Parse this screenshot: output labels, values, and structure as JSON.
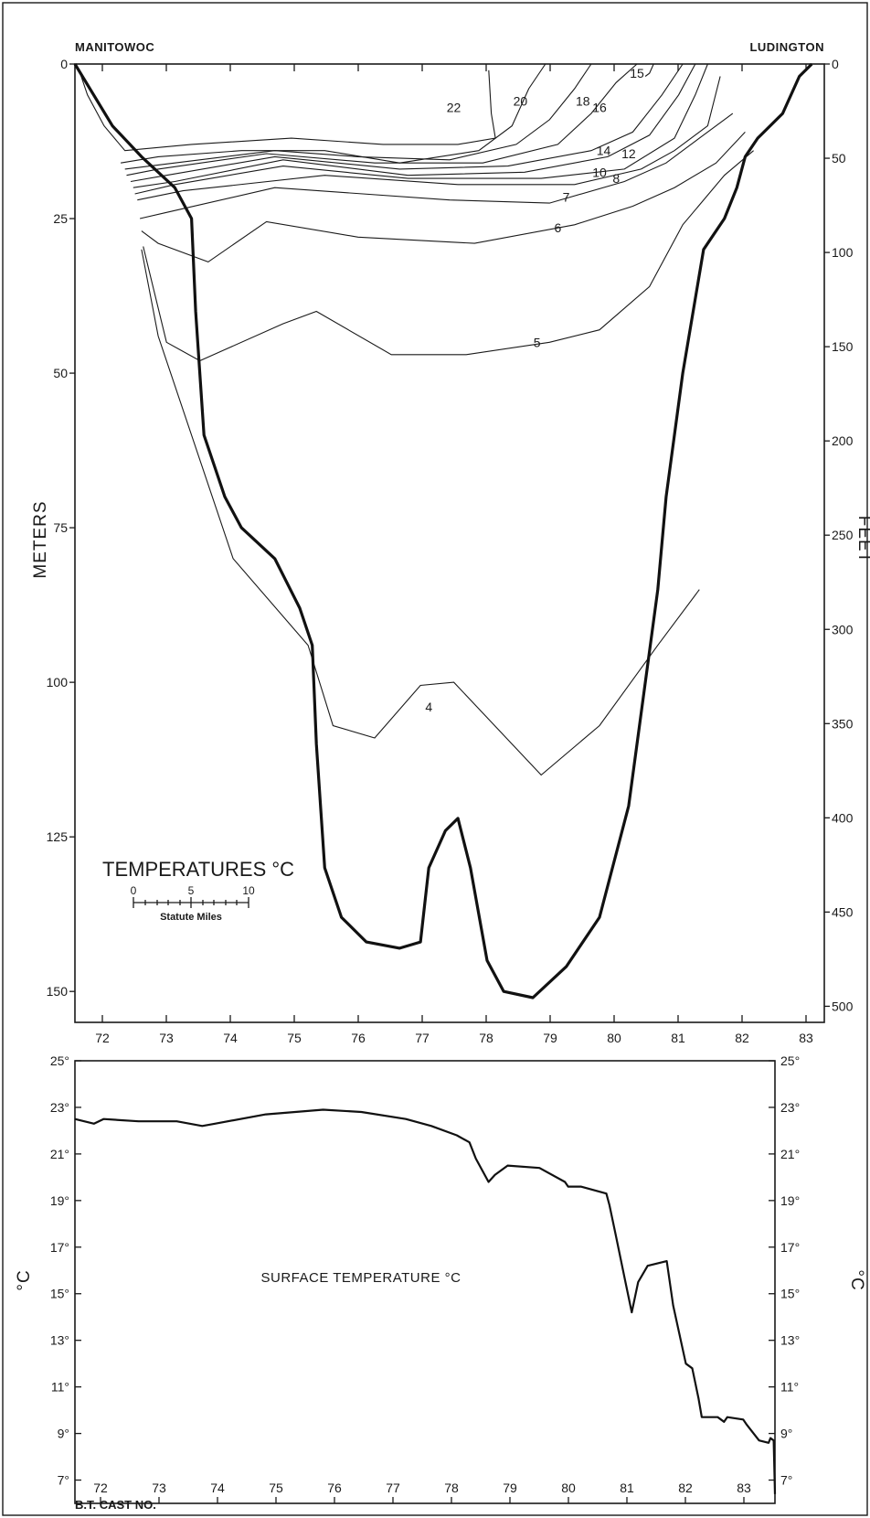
{
  "colors": {
    "ink": "#1a1a1a",
    "paper": "#ffffff"
  },
  "chart_data": [
    {
      "type": "line",
      "subtype": "cross-section isotherms",
      "title": "TEMPERATURES °C",
      "left_station": "MANITOWOC",
      "right_station": "LUDINGTON",
      "left_axis_label": "METERS",
      "right_axis_label": "FEET",
      "ylim": [
        0,
        155
      ],
      "y_meters_ticks": [
        {
          "v": 0,
          "label": "0"
        },
        {
          "v": 25,
          "label": "25"
        },
        {
          "v": 50,
          "label": "50"
        },
        {
          "v": 75,
          "label": "75"
        },
        {
          "v": 100,
          "label": "100"
        },
        {
          "v": 125,
          "label": "125"
        },
        {
          "v": 150,
          "label": "150"
        }
      ],
      "y_feet_ticks": [
        {
          "v": 0,
          "label": "0"
        },
        {
          "v": 50,
          "label": "50"
        },
        {
          "v": 100,
          "label": "100"
        },
        {
          "v": 150,
          "label": "150"
        },
        {
          "v": 200,
          "label": "200"
        },
        {
          "v": 250,
          "label": "250"
        },
        {
          "v": 300,
          "label": "300"
        },
        {
          "v": 350,
          "label": "350"
        },
        {
          "v": 400,
          "label": "400"
        },
        {
          "v": 450,
          "label": "450"
        },
        {
          "v": 500,
          "label": "500"
        }
      ],
      "x_ticks": [
        {
          "v": 72,
          "label": "72"
        },
        {
          "v": 73,
          "label": "73"
        },
        {
          "v": 74,
          "label": "74"
        },
        {
          "v": 75,
          "label": "75"
        },
        {
          "v": 76,
          "label": "76"
        },
        {
          "v": 77,
          "label": "77"
        },
        {
          "v": 78,
          "label": "78"
        },
        {
          "v": 79,
          "label": "79"
        },
        {
          "v": 80,
          "label": "80"
        },
        {
          "v": 81,
          "label": "81"
        },
        {
          "v": 82,
          "label": "82"
        },
        {
          "v": 83,
          "label": "83"
        }
      ],
      "scale_bar": {
        "ticks": [
          "0",
          "5",
          "10"
        ],
        "label": "Statute Miles"
      },
      "bottom_profile": [
        [
          71.0,
          0
        ],
        [
          71.45,
          10
        ],
        [
          71.8,
          15
        ],
        [
          72.2,
          20
        ],
        [
          72.4,
          25
        ],
        [
          72.45,
          40
        ],
        [
          72.55,
          60
        ],
        [
          72.8,
          70
        ],
        [
          73.0,
          75
        ],
        [
          73.4,
          80
        ],
        [
          73.7,
          88
        ],
        [
          73.85,
          94
        ],
        [
          73.9,
          110
        ],
        [
          74.0,
          130
        ],
        [
          74.2,
          138
        ],
        [
          74.5,
          142
        ],
        [
          74.9,
          143
        ],
        [
          75.15,
          142
        ],
        [
          75.25,
          130
        ],
        [
          75.45,
          124
        ],
        [
          75.6,
          122
        ],
        [
          75.75,
          130
        ],
        [
          75.95,
          145
        ],
        [
          76.15,
          150
        ],
        [
          76.5,
          151
        ],
        [
          76.9,
          146
        ],
        [
          77.3,
          138
        ],
        [
          77.65,
          120
        ],
        [
          77.9,
          95
        ],
        [
          78.0,
          85
        ],
        [
          78.1,
          70
        ],
        [
          78.3,
          50
        ],
        [
          78.55,
          30
        ],
        [
          78.8,
          25
        ],
        [
          78.95,
          20
        ],
        [
          79.05,
          15
        ],
        [
          79.2,
          12
        ],
        [
          79.5,
          8
        ],
        [
          79.7,
          2
        ],
        [
          79.85,
          0
        ]
      ],
      "series": [
        {
          "name": "22",
          "points": [
            [
              75.97,
              1
            ],
            [
              76.0,
              8
            ],
            [
              76.05,
              12
            ],
            [
              75.6,
              13
            ],
            [
              74.7,
              13
            ],
            [
              73.6,
              12
            ],
            [
              72.4,
              13
            ],
            [
              71.6,
              14
            ],
            [
              71.35,
              10
            ],
            [
              71.15,
              5
            ],
            [
              71.05,
              1
            ]
          ],
          "label_at": [
            75.55,
            7
          ]
        },
        {
          "name": "20",
          "points": [
            [
              76.65,
              0
            ],
            [
              76.45,
              4
            ],
            [
              76.25,
              10
            ],
            [
              75.85,
              14
            ],
            [
              74.9,
              16
            ],
            [
              74.0,
              14
            ],
            [
              73.0,
              14
            ],
            [
              72.0,
              15
            ],
            [
              71.55,
              16
            ]
          ],
          "label_at": [
            76.35,
            6
          ]
        },
        {
          "name": "18",
          "points": [
            [
              77.2,
              0
            ],
            [
              77.0,
              4
            ],
            [
              76.7,
              9
            ],
            [
              76.3,
              13
            ],
            [
              75.5,
              15.5
            ],
            [
              74.4,
              15
            ],
            [
              73.4,
              14
            ],
            [
              72.2,
              16
            ],
            [
              71.6,
              17
            ]
          ],
          "label_at": [
            77.1,
            6
          ]
        },
        {
          "name": "16",
          "points": [
            [
              77.75,
              0
            ],
            [
              77.5,
              3
            ],
            [
              77.2,
              8
            ],
            [
              76.8,
              13
            ],
            [
              75.9,
              16
            ],
            [
              74.6,
              16
            ],
            [
              73.3,
              14.5
            ],
            [
              72.0,
              17
            ],
            [
              71.62,
              18
            ]
          ],
          "label_at": [
            77.3,
            7
          ]
        },
        {
          "name": "15",
          "points": [
            [
              77.95,
              0
            ],
            [
              77.9,
              1.5
            ],
            [
              77.85,
              2
            ]
          ],
          "label_at": [
            77.75,
            1.5
          ]
        },
        {
          "name": "14",
          "points": [
            [
              78.3,
              0
            ],
            [
              78.05,
              5
            ],
            [
              77.7,
              11
            ],
            [
              77.2,
              14
            ],
            [
              76.2,
              16.5
            ],
            [
              74.9,
              17
            ],
            [
              73.4,
              15
            ],
            [
              72.1,
              18
            ],
            [
              71.67,
              19
            ]
          ],
          "label_at": [
            77.35,
            14
          ]
        },
        {
          "name": "12",
          "points": [
            [
              78.45,
              0
            ],
            [
              78.25,
              5
            ],
            [
              77.9,
              11.5
            ],
            [
              77.4,
              15
            ],
            [
              76.4,
              17.5
            ],
            [
              75.0,
              18
            ],
            [
              73.5,
              15.5
            ],
            [
              72.2,
              19
            ],
            [
              71.7,
              20
            ]
          ],
          "label_at": [
            77.65,
            14.5
          ]
        },
        {
          "name": "10",
          "points": [
            [
              78.6,
              0
            ],
            [
              78.45,
              5
            ],
            [
              78.2,
              12
            ],
            [
              77.6,
              17
            ],
            [
              76.6,
              18.5
            ],
            [
              75.0,
              18.5
            ],
            [
              73.5,
              16.5
            ],
            [
              72.2,
              19.5
            ],
            [
              71.72,
              21
            ]
          ],
          "label_at": [
            77.3,
            17.5
          ]
        },
        {
          "name": "8",
          "points": [
            [
              78.75,
              2
            ],
            [
              78.6,
              10
            ],
            [
              78.2,
              14
            ],
            [
              77.8,
              17
            ],
            [
              77.0,
              19.5
            ],
            [
              75.6,
              19.5
            ],
            [
              74.0,
              18
            ],
            [
              72.3,
              20.5
            ],
            [
              71.75,
              22
            ]
          ],
          "label_at": [
            77.5,
            18.5
          ]
        },
        {
          "name": "7",
          "points": [
            [
              78.9,
              8
            ],
            [
              78.5,
              12
            ],
            [
              78.1,
              16
            ],
            [
              77.6,
              19
            ],
            [
              76.7,
              22.5
            ],
            [
              75.5,
              22
            ],
            [
              73.4,
              20
            ],
            [
              72.1,
              24
            ],
            [
              71.78,
              25
            ]
          ],
          "label_at": [
            76.9,
            21.5
          ]
        },
        {
          "name": "6",
          "points": [
            [
              79.05,
              11
            ],
            [
              78.7,
              16
            ],
            [
              78.2,
              20
            ],
            [
              77.7,
              23
            ],
            [
              77.0,
              26
            ],
            [
              75.8,
              29
            ],
            [
              74.4,
              28
            ],
            [
              73.3,
              25.5
            ],
            [
              72.6,
              32
            ],
            [
              72.0,
              29
            ],
            [
              71.8,
              27
            ]
          ],
          "label_at": [
            76.8,
            26.5
          ]
        },
        {
          "name": "5",
          "points": [
            [
              79.15,
              14
            ],
            [
              78.8,
              18
            ],
            [
              78.3,
              26
            ],
            [
              77.9,
              36
            ],
            [
              77.3,
              43
            ],
            [
              76.7,
              45
            ],
            [
              75.7,
              47
            ],
            [
              74.8,
              47
            ],
            [
              73.9,
              40
            ],
            [
              73.5,
              42
            ],
            [
              72.5,
              48
            ],
            [
              72.1,
              45
            ],
            [
              71.82,
              29.5
            ]
          ],
          "label_at": [
            76.55,
            45
          ]
        },
        {
          "name": "4",
          "points": [
            [
              78.5,
              85
            ],
            [
              78.0,
              94
            ],
            [
              77.3,
              107
            ],
            [
              76.6,
              115
            ],
            [
              75.55,
              100
            ],
            [
              75.15,
              100.5
            ],
            [
              74.6,
              109
            ],
            [
              74.1,
              107
            ],
            [
              73.8,
              94
            ],
            [
              72.9,
              80
            ],
            [
              72.0,
              44
            ],
            [
              71.8,
              30
            ]
          ],
          "label_at": [
            75.25,
            104
          ]
        }
      ]
    },
    {
      "type": "line",
      "title": "SURFACE TEMPERATURE °C",
      "xlabel": "B.T. CAST NO.",
      "ylabel_left": "°C",
      "ylabel_right": "°C",
      "ylim": [
        6,
        25
      ],
      "y_ticks": [
        "25°",
        "23°",
        "21°",
        "19°",
        "17°",
        "15°",
        "13°",
        "11°",
        "9°",
        "7°"
      ],
      "y_tick_values": [
        25,
        23,
        21,
        19,
        17,
        15,
        13,
        11,
        9,
        7
      ],
      "x_ticks": [
        "72",
        "73",
        "74",
        "75",
        "76",
        "77",
        "78",
        "79",
        "80",
        "81",
        "82",
        "83"
      ],
      "x": [
        71.0,
        71.3,
        71.45,
        72.0,
        72.6,
        73.0,
        73.2,
        74.0,
        74.9,
        75.5,
        76.2,
        76.6,
        77.0,
        77.2,
        77.3,
        77.5,
        77.6,
        77.8,
        78.3,
        78.7,
        78.75,
        78.95,
        79.35,
        79.4,
        79.5,
        79.65,
        79.75,
        79.85,
        80.0,
        80.3,
        80.4,
        80.6,
        80.7,
        80.8,
        80.85,
        81.1,
        81.2,
        81.25,
        81.5,
        81.55,
        81.75,
        81.9,
        81.93,
        81.98,
        82.0
      ],
      "values": [
        22.5,
        22.3,
        22.5,
        22.4,
        22.4,
        22.2,
        22.3,
        22.7,
        22.9,
        22.8,
        22.5,
        22.2,
        21.8,
        21.5,
        20.8,
        19.8,
        20.1,
        20.5,
        20.4,
        19.8,
        19.6,
        19.6,
        19.3,
        18.8,
        17.5,
        15.5,
        14.2,
        15.5,
        16.2,
        16.4,
        14.5,
        12.0,
        11.8,
        10.5,
        9.7,
        9.7,
        9.5,
        9.7,
        9.6,
        9.4,
        8.7,
        8.6,
        8.8,
        8.7,
        6.4
      ]
    }
  ]
}
